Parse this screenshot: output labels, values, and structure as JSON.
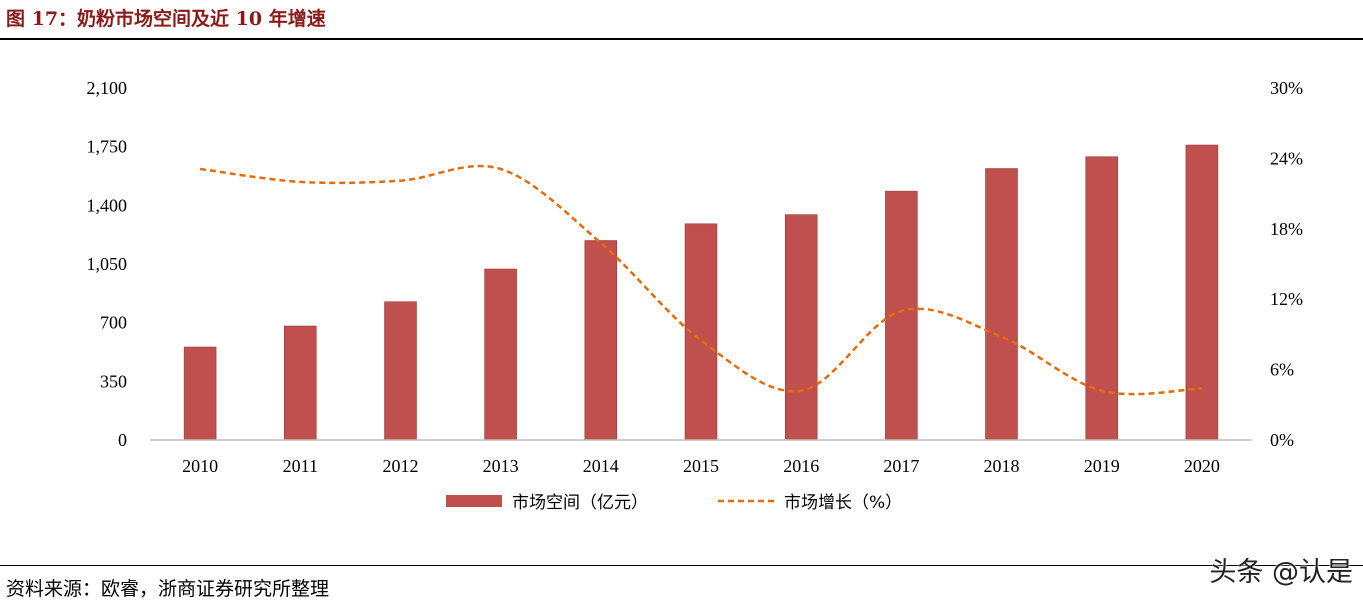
{
  "figure": {
    "title": "图 17：奶粉市场空间及近 10 年增速"
  },
  "chart_data": {
    "type": "bar",
    "categories": [
      "2010",
      "2011",
      "2012",
      "2013",
      "2014",
      "2015",
      "2016",
      "2017",
      "2018",
      "2019",
      "2020"
    ],
    "series": [
      {
        "name": "市场空间（亿元）",
        "type": "bar",
        "axis": "left",
        "color": "#c0504d",
        "values": [
          555,
          680,
          825,
          1020,
          1190,
          1290,
          1345,
          1485,
          1620,
          1690,
          1760
        ]
      },
      {
        "name": "市场增长（%）",
        "type": "line",
        "style": "dashed",
        "axis": "right",
        "color": "#e36c09",
        "values": [
          23.1,
          22.0,
          22.1,
          23.1,
          16.8,
          8.5,
          4.2,
          11.0,
          8.8,
          4.2,
          4.4
        ]
      }
    ],
    "y_left": {
      "ticks": [
        "0",
        "350",
        "700",
        "1,050",
        "1,400",
        "1,750",
        "2,100"
      ],
      "ylim": [
        0,
        2100
      ]
    },
    "y_right": {
      "ticks": [
        "0%",
        "6%",
        "12%",
        "18%",
        "24%",
        "30%"
      ],
      "ylim": [
        0,
        30
      ]
    },
    "grid": false,
    "legend": "bottom"
  },
  "footer": {
    "source": "资料来源：欧睿，浙商证券研究所整理",
    "watermark": "头条 @认是"
  }
}
